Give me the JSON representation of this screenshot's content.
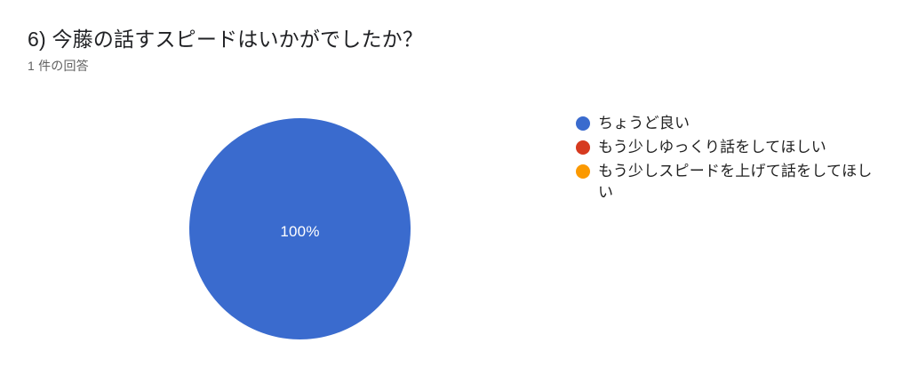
{
  "chart_data": {
    "type": "pie",
    "title": "6) 今藤の話すスピードはいかがでしたか？",
    "subtitle": "1 件の回答",
    "responses": 1,
    "legend_position": "right",
    "slices": [
      {
        "label": "ちょうど良い",
        "value": 1,
        "percent": "100%",
        "color": "#3a6bce"
      },
      {
        "label": "もう少しゆっくり話をしてほしい",
        "value": 0,
        "color": "#d63a1f"
      },
      {
        "label": "もう少しスピードを上げて話をしてほしい",
        "value": 0,
        "color": "#fb9900"
      }
    ]
  }
}
